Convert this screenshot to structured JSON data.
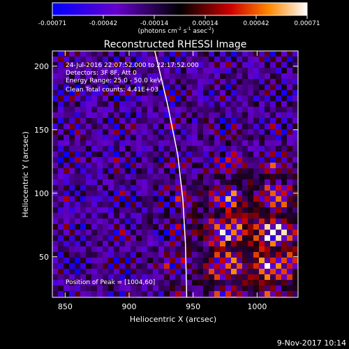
{
  "chart_data": {
    "type": "heatmap",
    "title": "Reconstructed RHESSI Image",
    "xlabel": "Heliocentric X (arcsec)",
    "ylabel": "Heliocentric Y (arcsec)",
    "xlim": [
      840,
      1032
    ],
    "ylim": [
      18,
      212
    ],
    "x_ticks": [
      850,
      900,
      950,
      1000
    ],
    "y_ticks": [
      50,
      100,
      150,
      200
    ],
    "colorbar": {
      "range": [
        -0.00071,
        0.00071
      ],
      "ticks": [
        "-0.00071",
        "-0.00042",
        "-0.00014",
        "0.00014",
        "0.00042",
        "0.00071"
      ],
      "label_main": "(photons cm",
      "label_exp1": "-2",
      "label_mid": " s",
      "label_exp2": "-1",
      "label_mid2": " asec",
      "label_exp3": "-2",
      "label_end": ")"
    },
    "annotations": [
      "24-Jul-2016 22:07:52.000 to 22:17:52.000",
      "Detectors: 3F 8F, Att 0",
      "Energy Range: 25.0 - 50.0 keV",
      "Clean    Total counts: 4.41E+03"
    ],
    "peak_label": "Position of Peak = [1004,60]",
    "peak": [
      1004,
      60
    ],
    "limb_curve": [
      [
        920,
        212
      ],
      [
        930,
        170
      ],
      [
        938,
        130
      ],
      [
        942,
        95
      ],
      [
        944,
        60
      ],
      [
        945,
        18
      ]
    ]
  },
  "footer_date": "9-Nov-2017 10:14"
}
